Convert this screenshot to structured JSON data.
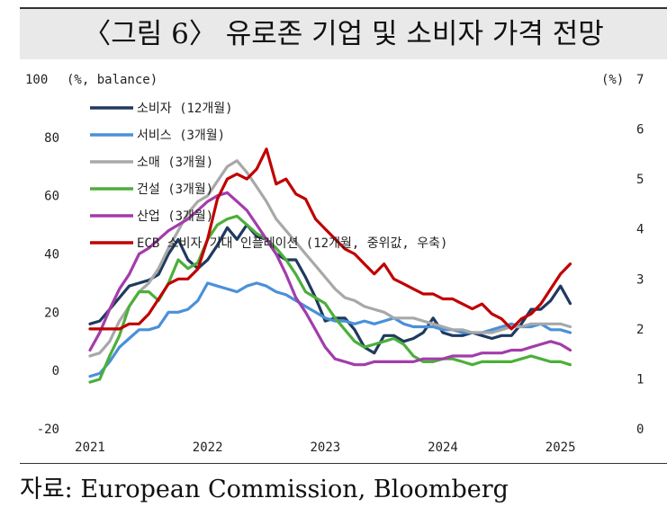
{
  "title": "〈그림 6〉 유로존 기업 및 소비자 가격 전망",
  "source": "자료: European Commission, Bloomberg",
  "chart_data": {
    "type": "line",
    "left_axis_label": "(%, balance)",
    "right_axis_label": "(%)",
    "left_ticks": [
      "100",
      "80",
      "60",
      "40",
      "20",
      "0",
      "-20"
    ],
    "right_ticks": [
      "7",
      "6",
      "5",
      "4",
      "3",
      "2",
      "1",
      "0"
    ],
    "x_ticks": [
      "2021",
      "2022",
      "2023",
      "2024",
      "2025"
    ],
    "ylim_left": [
      -20,
      100
    ],
    "ylim_right": [
      0,
      7
    ],
    "xlim": [
      2021.0,
      2025.5
    ],
    "grid": false,
    "legend_position": "top-left",
    "series": [
      {
        "name": "소비자 (12개월)",
        "axis": "left",
        "color": "#1f3a5f",
        "points": [
          [
            2021.0,
            16
          ],
          [
            2021.083,
            17
          ],
          [
            2021.167,
            21
          ],
          [
            2021.25,
            25
          ],
          [
            2021.333,
            29
          ],
          [
            2021.417,
            30
          ],
          [
            2021.5,
            31
          ],
          [
            2021.583,
            33
          ],
          [
            2021.667,
            40
          ],
          [
            2021.75,
            45
          ],
          [
            2021.833,
            38
          ],
          [
            2021.917,
            35
          ],
          [
            2022.0,
            38
          ],
          [
            2022.083,
            43
          ],
          [
            2022.167,
            49
          ],
          [
            2022.25,
            45
          ],
          [
            2022.333,
            50
          ],
          [
            2022.417,
            46
          ],
          [
            2022.5,
            45
          ],
          [
            2022.583,
            40
          ],
          [
            2022.667,
            38
          ],
          [
            2022.75,
            38
          ],
          [
            2022.833,
            32
          ],
          [
            2022.917,
            25
          ],
          [
            2023.0,
            17
          ],
          [
            2023.083,
            18
          ],
          [
            2023.167,
            18
          ],
          [
            2023.25,
            14
          ],
          [
            2023.333,
            8
          ],
          [
            2023.417,
            6
          ],
          [
            2023.5,
            12
          ],
          [
            2023.583,
            12
          ],
          [
            2023.667,
            10
          ],
          [
            2023.75,
            11
          ],
          [
            2023.833,
            13
          ],
          [
            2023.917,
            18
          ],
          [
            2024.0,
            13
          ],
          [
            2024.083,
            12
          ],
          [
            2024.167,
            12
          ],
          [
            2024.25,
            13
          ],
          [
            2024.333,
            12
          ],
          [
            2024.417,
            11
          ],
          [
            2024.5,
            12
          ],
          [
            2024.583,
            12
          ],
          [
            2024.667,
            16
          ],
          [
            2024.75,
            21
          ],
          [
            2024.833,
            21
          ],
          [
            2024.917,
            24
          ],
          [
            2025.0,
            29
          ],
          [
            2025.083,
            23
          ]
        ]
      },
      {
        "name": "서비스 (3개월)",
        "axis": "left",
        "color": "#4a90d9",
        "points": [
          [
            2021.0,
            -2
          ],
          [
            2021.083,
            -1
          ],
          [
            2021.167,
            3
          ],
          [
            2021.25,
            8
          ],
          [
            2021.333,
            11
          ],
          [
            2021.417,
            14
          ],
          [
            2021.5,
            14
          ],
          [
            2021.583,
            15
          ],
          [
            2021.667,
            20
          ],
          [
            2021.75,
            20
          ],
          [
            2021.833,
            21
          ],
          [
            2021.917,
            24
          ],
          [
            2022.0,
            30
          ],
          [
            2022.083,
            29
          ],
          [
            2022.167,
            28
          ],
          [
            2022.25,
            27
          ],
          [
            2022.333,
            29
          ],
          [
            2022.417,
            30
          ],
          [
            2022.5,
            29
          ],
          [
            2022.583,
            27
          ],
          [
            2022.667,
            26
          ],
          [
            2022.75,
            24
          ],
          [
            2022.833,
            22
          ],
          [
            2022.917,
            20
          ],
          [
            2023.0,
            18
          ],
          [
            2023.083,
            17
          ],
          [
            2023.167,
            17
          ],
          [
            2023.25,
            16
          ],
          [
            2023.333,
            17
          ],
          [
            2023.417,
            16
          ],
          [
            2023.5,
            17
          ],
          [
            2023.583,
            18
          ],
          [
            2023.667,
            16
          ],
          [
            2023.75,
            15
          ],
          [
            2023.833,
            15
          ],
          [
            2023.917,
            15
          ],
          [
            2024.0,
            14
          ],
          [
            2024.083,
            14
          ],
          [
            2024.167,
            13
          ],
          [
            2024.25,
            13
          ],
          [
            2024.333,
            13
          ],
          [
            2024.417,
            14
          ],
          [
            2024.5,
            15
          ],
          [
            2024.583,
            16
          ],
          [
            2024.667,
            15
          ],
          [
            2024.75,
            15
          ],
          [
            2024.833,
            16
          ],
          [
            2024.917,
            14
          ],
          [
            2025.0,
            14
          ],
          [
            2025.083,
            13
          ]
        ]
      },
      {
        "name": "소매 (3개월)",
        "axis": "left",
        "color": "#a8a8a8",
        "points": [
          [
            2021.0,
            5
          ],
          [
            2021.083,
            6
          ],
          [
            2021.167,
            10
          ],
          [
            2021.25,
            17
          ],
          [
            2021.333,
            22
          ],
          [
            2021.417,
            27
          ],
          [
            2021.5,
            30
          ],
          [
            2021.583,
            35
          ],
          [
            2021.667,
            42
          ],
          [
            2021.75,
            48
          ],
          [
            2021.833,
            54
          ],
          [
            2021.917,
            58
          ],
          [
            2022.0,
            60
          ],
          [
            2022.083,
            65
          ],
          [
            2022.167,
            70
          ],
          [
            2022.25,
            72
          ],
          [
            2022.333,
            68
          ],
          [
            2022.417,
            63
          ],
          [
            2022.5,
            58
          ],
          [
            2022.583,
            52
          ],
          [
            2022.667,
            48
          ],
          [
            2022.75,
            44
          ],
          [
            2022.833,
            40
          ],
          [
            2022.917,
            36
          ],
          [
            2023.0,
            32
          ],
          [
            2023.083,
            28
          ],
          [
            2023.167,
            25
          ],
          [
            2023.25,
            24
          ],
          [
            2023.333,
            22
          ],
          [
            2023.417,
            21
          ],
          [
            2023.5,
            20
          ],
          [
            2023.583,
            18
          ],
          [
            2023.667,
            18
          ],
          [
            2023.75,
            18
          ],
          [
            2023.833,
            17
          ],
          [
            2023.917,
            16
          ],
          [
            2024.0,
            15
          ],
          [
            2024.083,
            14
          ],
          [
            2024.167,
            14
          ],
          [
            2024.25,
            13
          ],
          [
            2024.333,
            13
          ],
          [
            2024.417,
            13
          ],
          [
            2024.5,
            14
          ],
          [
            2024.583,
            15
          ],
          [
            2024.667,
            15
          ],
          [
            2024.75,
            16
          ],
          [
            2024.833,
            16
          ],
          [
            2024.917,
            16
          ],
          [
            2025.0,
            16
          ],
          [
            2025.083,
            15
          ]
        ]
      },
      {
        "name": "건설 (3개월)",
        "axis": "left",
        "color": "#4caf3a",
        "points": [
          [
            2021.0,
            -4
          ],
          [
            2021.083,
            -3
          ],
          [
            2021.167,
            5
          ],
          [
            2021.25,
            12
          ],
          [
            2021.333,
            22
          ],
          [
            2021.417,
            27
          ],
          [
            2021.5,
            27
          ],
          [
            2021.583,
            24
          ],
          [
            2021.667,
            30
          ],
          [
            2021.75,
            38
          ],
          [
            2021.833,
            35
          ],
          [
            2021.917,
            37
          ],
          [
            2022.0,
            45
          ],
          [
            2022.083,
            50
          ],
          [
            2022.167,
            52
          ],
          [
            2022.25,
            53
          ],
          [
            2022.333,
            50
          ],
          [
            2022.417,
            47
          ],
          [
            2022.5,
            45
          ],
          [
            2022.583,
            42
          ],
          [
            2022.667,
            38
          ],
          [
            2022.75,
            33
          ],
          [
            2022.833,
            27
          ],
          [
            2022.917,
            25
          ],
          [
            2023.0,
            23
          ],
          [
            2023.083,
            18
          ],
          [
            2023.167,
            14
          ],
          [
            2023.25,
            10
          ],
          [
            2023.333,
            8
          ],
          [
            2023.417,
            9
          ],
          [
            2023.5,
            10
          ],
          [
            2023.583,
            11
          ],
          [
            2023.667,
            9
          ],
          [
            2023.75,
            5
          ],
          [
            2023.833,
            3
          ],
          [
            2023.917,
            3
          ],
          [
            2024.0,
            4
          ],
          [
            2024.083,
            4
          ],
          [
            2024.167,
            3
          ],
          [
            2024.25,
            2
          ],
          [
            2024.333,
            3
          ],
          [
            2024.417,
            3
          ],
          [
            2024.5,
            3
          ],
          [
            2024.583,
            3
          ],
          [
            2024.667,
            4
          ],
          [
            2024.75,
            5
          ],
          [
            2024.833,
            4
          ],
          [
            2024.917,
            3
          ],
          [
            2025.0,
            3
          ],
          [
            2025.083,
            2
          ]
        ]
      },
      {
        "name": "산업 (3개월)",
        "axis": "left",
        "color": "#a33cab",
        "points": [
          [
            2021.0,
            7
          ],
          [
            2021.083,
            13
          ],
          [
            2021.167,
            21
          ],
          [
            2021.25,
            28
          ],
          [
            2021.333,
            33
          ],
          [
            2021.417,
            40
          ],
          [
            2021.5,
            42
          ],
          [
            2021.583,
            45
          ],
          [
            2021.667,
            48
          ],
          [
            2021.75,
            50
          ],
          [
            2021.833,
            52
          ],
          [
            2021.917,
            55
          ],
          [
            2022.0,
            58
          ],
          [
            2022.083,
            60
          ],
          [
            2022.167,
            61
          ],
          [
            2022.25,
            58
          ],
          [
            2022.333,
            55
          ],
          [
            2022.417,
            50
          ],
          [
            2022.5,
            45
          ],
          [
            2022.583,
            40
          ],
          [
            2022.667,
            33
          ],
          [
            2022.75,
            25
          ],
          [
            2022.833,
            20
          ],
          [
            2022.917,
            14
          ],
          [
            2023.0,
            8
          ],
          [
            2023.083,
            4
          ],
          [
            2023.167,
            3
          ],
          [
            2023.25,
            2
          ],
          [
            2023.333,
            2
          ],
          [
            2023.417,
            3
          ],
          [
            2023.5,
            3
          ],
          [
            2023.583,
            3
          ],
          [
            2023.667,
            3
          ],
          [
            2023.75,
            3
          ],
          [
            2023.833,
            4
          ],
          [
            2023.917,
            4
          ],
          [
            2024.0,
            4
          ],
          [
            2024.083,
            5
          ],
          [
            2024.167,
            5
          ],
          [
            2024.25,
            5
          ],
          [
            2024.333,
            6
          ],
          [
            2024.417,
            6
          ],
          [
            2024.5,
            6
          ],
          [
            2024.583,
            7
          ],
          [
            2024.667,
            7
          ],
          [
            2024.75,
            8
          ],
          [
            2024.833,
            9
          ],
          [
            2024.917,
            10
          ],
          [
            2025.0,
            9
          ],
          [
            2025.083,
            7
          ]
        ]
      },
      {
        "name": "ECB 소비자 기대 인플레이션 (12개월, 중위값, 우축)",
        "axis": "right",
        "color": "#c00000",
        "points": [
          [
            2021.0,
            2.0
          ],
          [
            2021.083,
            2.0
          ],
          [
            2021.167,
            2.0
          ],
          [
            2021.25,
            2.0
          ],
          [
            2021.333,
            2.1
          ],
          [
            2021.417,
            2.1
          ],
          [
            2021.5,
            2.3
          ],
          [
            2021.583,
            2.6
          ],
          [
            2021.667,
            2.9
          ],
          [
            2021.75,
            3.0
          ],
          [
            2021.833,
            3.0
          ],
          [
            2021.917,
            3.2
          ],
          [
            2022.0,
            3.8
          ],
          [
            2022.083,
            4.6
          ],
          [
            2022.167,
            5.0
          ],
          [
            2022.25,
            5.1
          ],
          [
            2022.333,
            5.0
          ],
          [
            2022.417,
            5.2
          ],
          [
            2022.5,
            5.6
          ],
          [
            2022.583,
            4.9
          ],
          [
            2022.667,
            5.0
          ],
          [
            2022.75,
            4.7
          ],
          [
            2022.833,
            4.6
          ],
          [
            2022.917,
            4.2
          ],
          [
            2023.0,
            4.0
          ],
          [
            2023.083,
            3.8
          ],
          [
            2023.167,
            3.6
          ],
          [
            2023.25,
            3.5
          ],
          [
            2023.333,
            3.3
          ],
          [
            2023.417,
            3.1
          ],
          [
            2023.5,
            3.3
          ],
          [
            2023.583,
            3.0
          ],
          [
            2023.667,
            2.9
          ],
          [
            2023.75,
            2.8
          ],
          [
            2023.833,
            2.7
          ],
          [
            2023.917,
            2.7
          ],
          [
            2024.0,
            2.6
          ],
          [
            2024.083,
            2.6
          ],
          [
            2024.167,
            2.5
          ],
          [
            2024.25,
            2.4
          ],
          [
            2024.333,
            2.5
          ],
          [
            2024.417,
            2.3
          ],
          [
            2024.5,
            2.2
          ],
          [
            2024.583,
            2.0
          ],
          [
            2024.667,
            2.2
          ],
          [
            2024.75,
            2.3
          ],
          [
            2024.833,
            2.5
          ],
          [
            2024.917,
            2.8
          ],
          [
            2025.0,
            3.1
          ],
          [
            2025.083,
            3.3
          ]
        ]
      }
    ]
  }
}
